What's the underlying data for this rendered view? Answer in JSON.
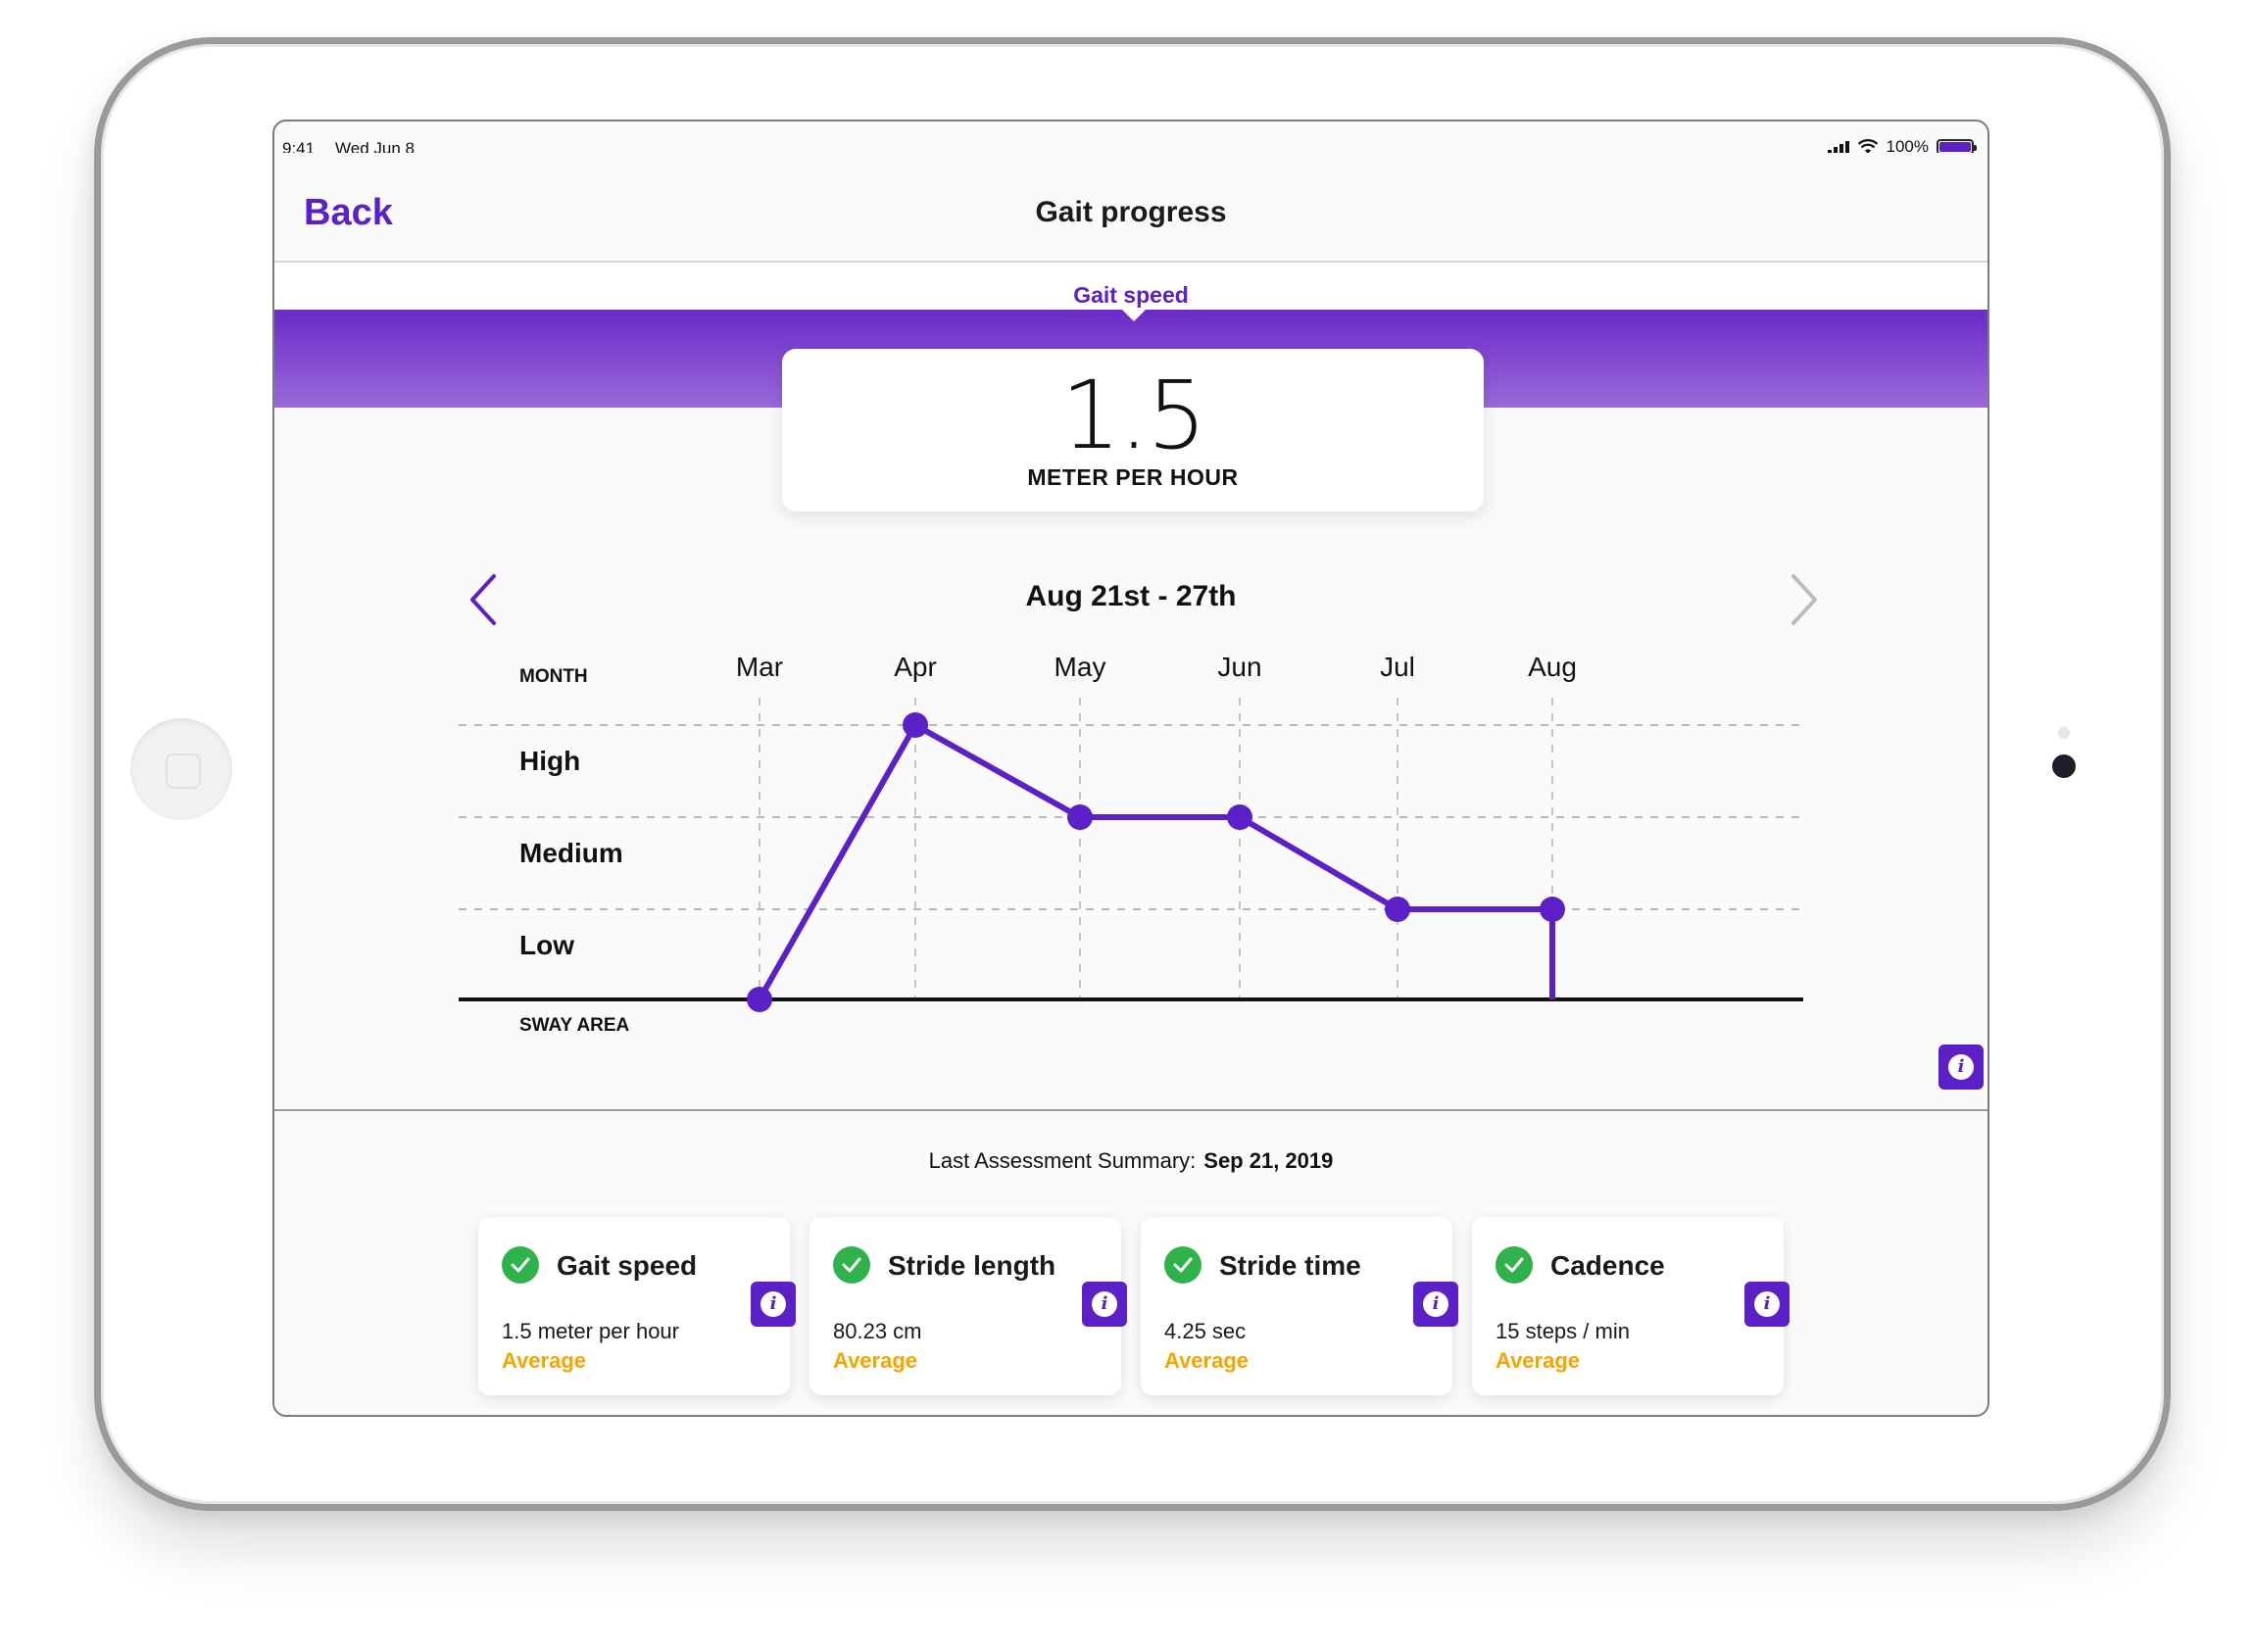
{
  "status_bar": {
    "time": "9:41",
    "date": "Wed Jun 8",
    "battery": "100%"
  },
  "nav": {
    "back_label": "Back",
    "title": "Gait progress"
  },
  "tabs": [
    {
      "label": "Gait speed",
      "active": true
    }
  ],
  "metric": {
    "value": "1.5",
    "unit": "METER PER HOUR"
  },
  "range": {
    "label": "Aug 21st - 27th"
  },
  "chart_data": {
    "type": "line",
    "x_axis_label": "MONTH",
    "baseline_label": "SWAY AREA",
    "categories": [
      "Mar",
      "Apr",
      "May",
      "Jun",
      "Jul",
      "Aug"
    ],
    "levels": [
      "High",
      "Medium",
      "Low"
    ],
    "level_values": [
      3,
      2,
      1
    ],
    "values": [
      0,
      3,
      2,
      2,
      1,
      1
    ],
    "ylim": [
      0,
      3
    ],
    "grid": true,
    "line_color": "#5b21c6"
  },
  "summary": {
    "label": "Last Assessment Summary:",
    "date": "Sep 21, 2019"
  },
  "cards": [
    {
      "title": "Gait speed",
      "value": "1.5 meter per hour",
      "status": "Average"
    },
    {
      "title": "Stride length",
      "value": "80.23 cm",
      "status": "Average"
    },
    {
      "title": "Stride time",
      "value": "4.25 sec",
      "status": "Average"
    },
    {
      "title": "Cadence",
      "value": "15 steps / min",
      "status": "Average"
    }
  ],
  "colors": {
    "accent": "#5b21c6",
    "success": "#2fb24c",
    "warning": "#f5a400"
  },
  "icons": {
    "info": "info-icon",
    "check": "check-icon",
    "prev": "chevron-left-icon",
    "next": "chevron-right-icon"
  }
}
